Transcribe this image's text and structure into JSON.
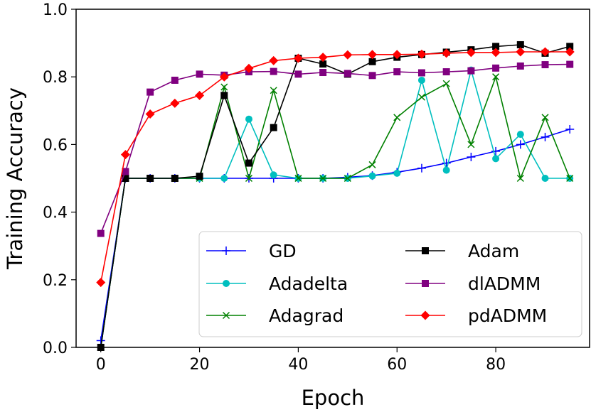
{
  "chart_data": {
    "type": "line",
    "title": "",
    "xlabel": "Epoch",
    "ylabel": "Training Accuracy",
    "xlim": [
      -5,
      99
    ],
    "ylim": [
      0.0,
      1.0
    ],
    "xticks": [
      0,
      20,
      40,
      60,
      80
    ],
    "xtick_labels": [
      "0",
      "20",
      "40",
      "60",
      "80"
    ],
    "yticks": [
      0.0,
      0.2,
      0.4,
      0.6,
      0.8,
      1.0
    ],
    "ytick_labels": [
      "0.0",
      "0.2",
      "0.4",
      "0.6",
      "0.8",
      "1.0"
    ],
    "grid": false,
    "legend_position": "lower-right",
    "x": [
      0,
      5,
      10,
      15,
      20,
      25,
      30,
      35,
      40,
      45,
      50,
      55,
      60,
      65,
      70,
      75,
      80,
      85,
      90,
      95
    ],
    "series": [
      {
        "name": "GD",
        "color": "#0000ff",
        "marker": "plus",
        "values": [
          0.02,
          0.5,
          0.5,
          0.5,
          0.5,
          0.5,
          0.5,
          0.5,
          0.5,
          0.5,
          0.503,
          0.508,
          0.518,
          0.53,
          0.545,
          0.563,
          0.58,
          0.6,
          0.622,
          0.645
        ]
      },
      {
        "name": "Adadelta",
        "color": "#00bfbf",
        "marker": "circle",
        "values": [
          0.0,
          0.5,
          0.5,
          0.5,
          0.5,
          0.5,
          0.675,
          0.51,
          0.5,
          0.5,
          0.5,
          0.507,
          0.515,
          0.79,
          0.524,
          0.82,
          0.558,
          0.63,
          0.5,
          0.5
        ]
      },
      {
        "name": "Adagrad",
        "color": "#008000",
        "marker": "x",
        "values": [
          0.0,
          0.5,
          0.5,
          0.5,
          0.5,
          0.77,
          0.5,
          0.76,
          0.5,
          0.5,
          0.5,
          0.54,
          0.68,
          0.74,
          0.78,
          0.6,
          0.8,
          0.5,
          0.68,
          0.5
        ]
      },
      {
        "name": "Adam",
        "color": "#000000",
        "marker": "square",
        "values": [
          0.0,
          0.5,
          0.5,
          0.5,
          0.506,
          0.745,
          0.545,
          0.65,
          0.855,
          0.838,
          0.808,
          0.845,
          0.858,
          0.866,
          0.873,
          0.88,
          0.89,
          0.895,
          0.87,
          0.89
        ]
      },
      {
        "name": "dlADMM",
        "color": "#800080",
        "marker": "square",
        "values": [
          0.337,
          0.52,
          0.755,
          0.79,
          0.808,
          0.805,
          0.815,
          0.816,
          0.808,
          0.813,
          0.81,
          0.804,
          0.815,
          0.812,
          0.815,
          0.818,
          0.826,
          0.832,
          0.836,
          0.837
        ]
      },
      {
        "name": "pdADMM",
        "color": "#ff0000",
        "marker": "diamond",
        "values": [
          0.192,
          0.57,
          0.69,
          0.722,
          0.745,
          0.8,
          0.825,
          0.848,
          0.855,
          0.858,
          0.865,
          0.866,
          0.866,
          0.867,
          0.87,
          0.872,
          0.872,
          0.874,
          0.874,
          0.874
        ]
      }
    ]
  }
}
